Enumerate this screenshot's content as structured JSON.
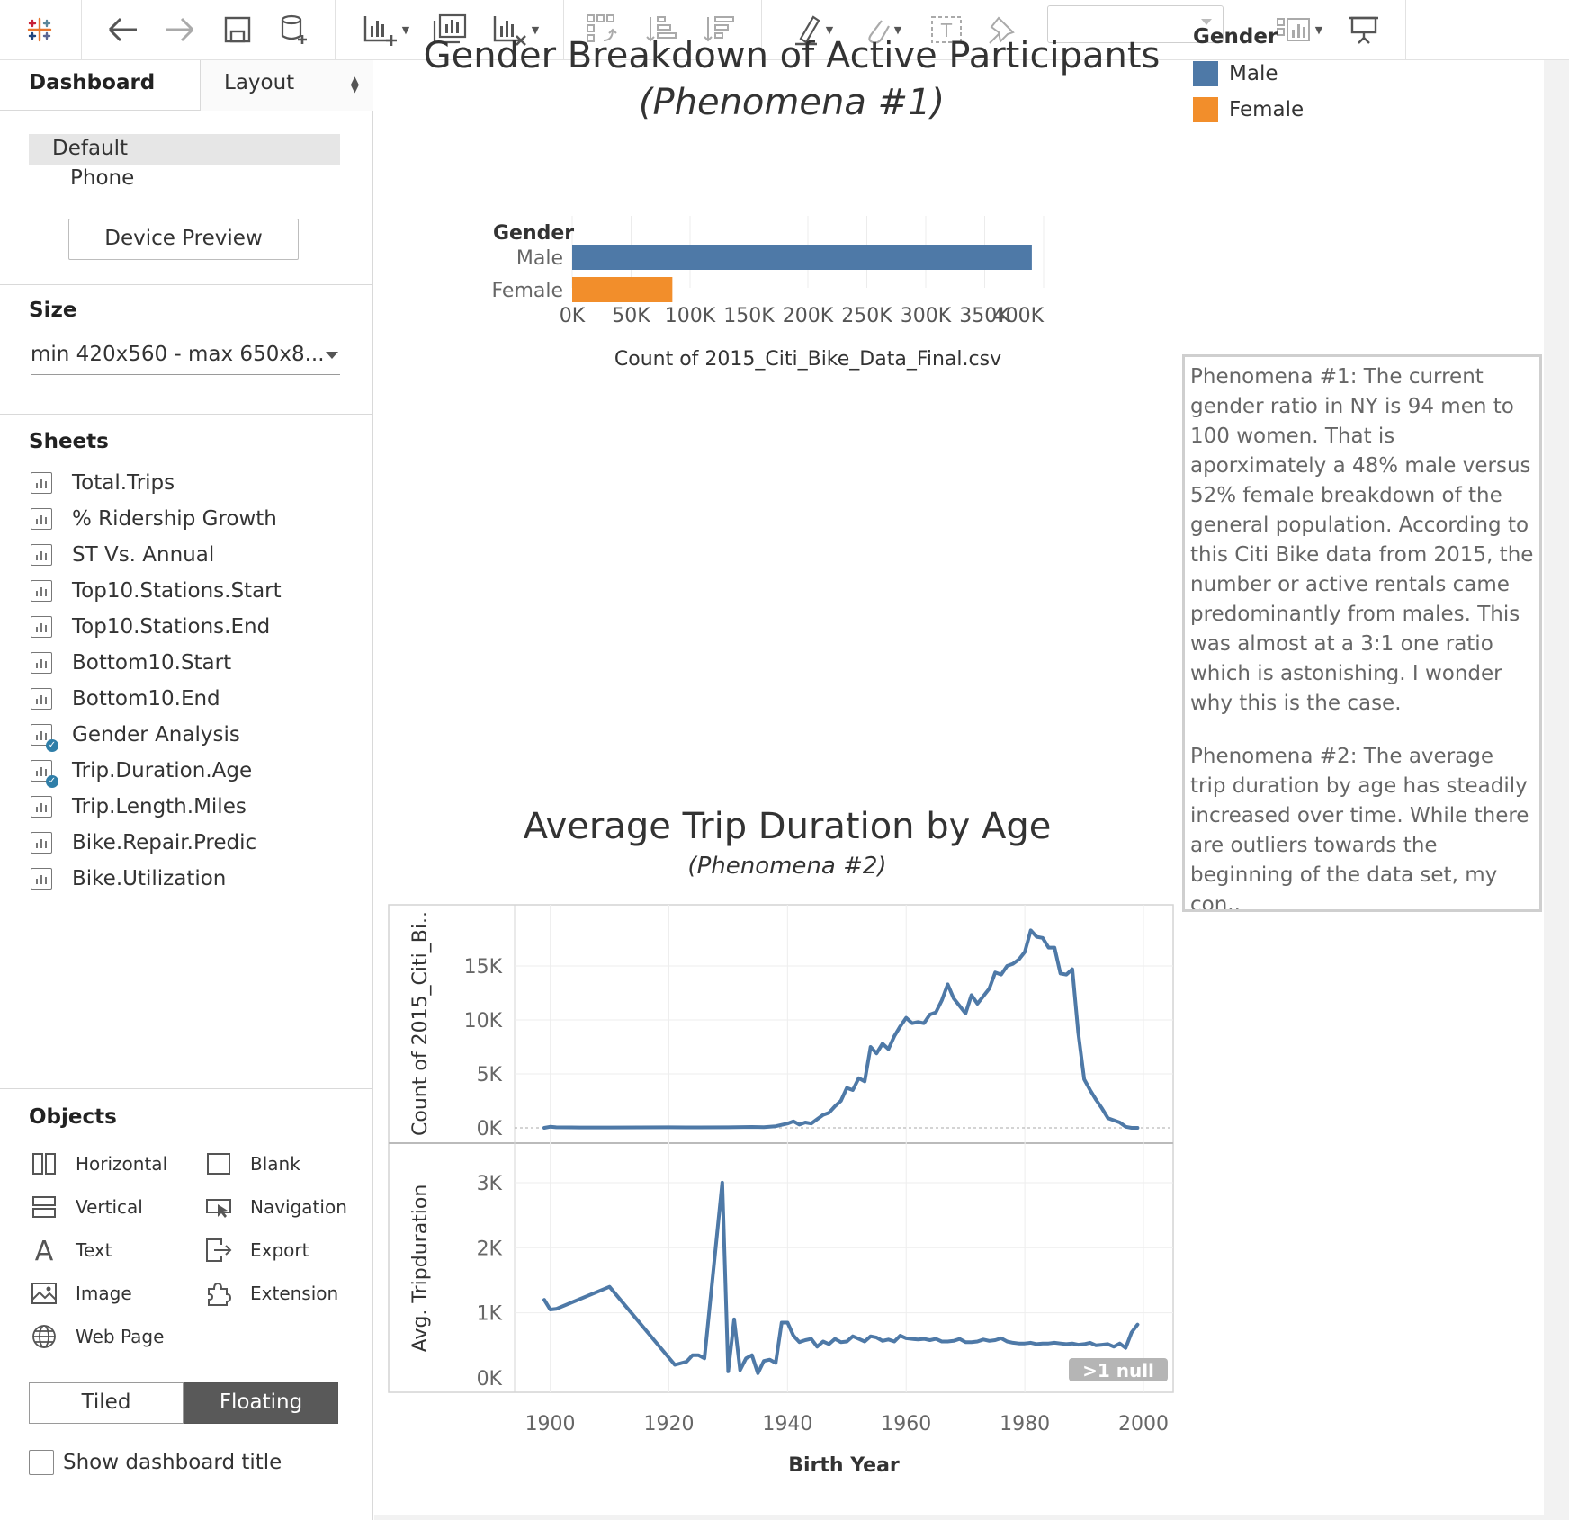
{
  "toolbar": {
    "icons": [
      "tableau-logo-icon",
      "undo-icon",
      "redo-icon",
      "save-icon",
      "new-datasource-icon",
      "new-worksheet-icon",
      "duplicate-sheet-icon",
      "clear-sheet-icon",
      "swap-icon",
      "sort-ascending-icon",
      "sort-descending-icon",
      "highlight-icon",
      "group-icon",
      "label-icon",
      "pin-icon",
      "show-cards-icon",
      "presentation-icon"
    ],
    "select_value": ""
  },
  "left_panel": {
    "tab_dashboard": "Dashboard",
    "tab_layout": "Layout",
    "device_default": "Default",
    "device_phone": "Phone",
    "device_preview_button": "Device Preview",
    "size_title": "Size",
    "size_value": "min 420x560 - max 650x8...",
    "sheets_title": "Sheets",
    "sheets": [
      {
        "label": "Total.Trips",
        "used": false
      },
      {
        "label": "% Ridership Growth",
        "used": false
      },
      {
        "label": "ST Vs. Annual",
        "used": false
      },
      {
        "label": "Top10.Stations.Start",
        "used": false
      },
      {
        "label": "Top10.Stations.End",
        "used": false
      },
      {
        "label": "Bottom10.Start",
        "used": false
      },
      {
        "label": "Bottom10.End",
        "used": false
      },
      {
        "label": "Gender Analysis",
        "used": true
      },
      {
        "label": "Trip.Duration.Age",
        "used": true
      },
      {
        "label": "Trip.Length.Miles",
        "used": false
      },
      {
        "label": "Bike.Repair.Predic",
        "used": false
      },
      {
        "label": "Bike.Utilization",
        "used": false
      }
    ],
    "objects_title": "Objects",
    "objects": [
      {
        "label": "Horizontal",
        "icon": "horizontal-container-icon"
      },
      {
        "label": "Blank",
        "icon": "blank-icon"
      },
      {
        "label": "Vertical",
        "icon": "vertical-container-icon"
      },
      {
        "label": "Navigation",
        "icon": "navigation-icon"
      },
      {
        "label": "Text",
        "icon": "text-icon"
      },
      {
        "label": "Export",
        "icon": "export-icon"
      },
      {
        "label": "Image",
        "icon": "image-icon"
      },
      {
        "label": "Extension",
        "icon": "extension-icon"
      },
      {
        "label": "Web Page",
        "icon": "web-page-icon"
      }
    ],
    "tiled_label": "Tiled",
    "floating_label": "Floating",
    "show_title_label": "Show dashboard title"
  },
  "dashboard": {
    "title1_line1": "Gender Breakdown of Active Participants",
    "title1_line2": "(Phenomena #1)",
    "legend_title": "Gender",
    "legend": [
      {
        "label": "Male",
        "color": "#4e79a7"
      },
      {
        "label": "Female",
        "color": "#f28e2b"
      }
    ],
    "note_p1": "Phenomena #1: The current gender ratio in NY is 94 men to 100 women. That is aporximately a 48% male versus 52% female breakdown of the general population. According to this Citi Bike data from 2015, the number or active rentals came predominantly from males. This was almost at a 3:1 one ratio which is astonishing. I wonder why this is the case.",
    "note_p2": "Phenomena #2: The average trip duration by age has steadily increased over time. While there are outliers towards the beginning of the data set, my con..",
    "title2": "Average Trip Duration by Age",
    "title2_sub": "(Phenomena #2)"
  },
  "chart_data": [
    {
      "type": "bar",
      "orientation": "horizontal",
      "row_header": "Gender",
      "categories": [
        "Male",
        "Female"
      ],
      "values": [
        390000,
        85000
      ],
      "colors": [
        "#4e79a7",
        "#f28e2b"
      ],
      "xlabel": "Count of 2015_Citi_Bike_Data_Final.csv",
      "xlim": [
        0,
        400000
      ],
      "xticks": [
        0,
        50000,
        100000,
        150000,
        200000,
        250000,
        300000,
        350000,
        400000
      ],
      "xtick_labels": [
        "0K",
        "50K",
        "100K",
        "150K",
        "200K",
        "250K",
        "300K",
        "350K",
        "400K"
      ],
      "grid": true
    },
    {
      "type": "line",
      "ylabel": "Count of 2015_Citi_Bi..",
      "xlabel": "Birth Year",
      "xlim": [
        1894,
        2005
      ],
      "ylim": [
        0,
        19500
      ],
      "xticks": [
        1900,
        1920,
        1940,
        1960,
        1980,
        2000
      ],
      "yticks": [
        0,
        5000,
        10000,
        15000
      ],
      "ytick_labels": [
        "0K",
        "5K",
        "10K",
        "15K"
      ],
      "color": "#4e79a7",
      "x": [
        1899,
        1900,
        1901,
        1905,
        1910,
        1915,
        1920,
        1925,
        1930,
        1934,
        1936,
        1938,
        1940,
        1941,
        1942,
        1943,
        1944,
        1945,
        1946,
        1947,
        1948,
        1949,
        1950,
        1951,
        1952,
        1953,
        1954,
        1955,
        1956,
        1957,
        1958,
        1959,
        1960,
        1961,
        1962,
        1963,
        1964,
        1965,
        1966,
        1967,
        1968,
        1969,
        1970,
        1971,
        1972,
        1973,
        1974,
        1975,
        1976,
        1977,
        1978,
        1979,
        1980,
        1981,
        1982,
        1983,
        1984,
        1985,
        1986,
        1987,
        1988,
        1989,
        1990,
        1991,
        1992,
        1993,
        1994,
        1995,
        1996,
        1997,
        1998,
        1999
      ],
      "y": [
        0,
        100,
        50,
        30,
        30,
        40,
        50,
        40,
        50,
        80,
        60,
        150,
        400,
        600,
        300,
        500,
        400,
        800,
        1200,
        1400,
        2000,
        2500,
        3700,
        3500,
        4600,
        4300,
        7500,
        6900,
        7800,
        7300,
        8500,
        9400,
        10200,
        9700,
        9800,
        9700,
        10500,
        10700,
        11800,
        13300,
        12000,
        11300,
        10600,
        12300,
        11500,
        12200,
        12900,
        14400,
        14200,
        15000,
        15200,
        15600,
        16300,
        18300,
        17700,
        17600,
        16700,
        16700,
        14300,
        14200,
        14700,
        8800,
        4500,
        3500,
        2600,
        1800,
        900,
        700,
        500,
        100,
        0,
        0
      ]
    },
    {
      "type": "line",
      "ylabel": "Avg. Tripduration",
      "xlabel": "Birth Year",
      "xlim": [
        1894,
        2005
      ],
      "ylim": [
        0,
        3400
      ],
      "xticks": [
        1900,
        1920,
        1940,
        1960,
        1980,
        2000
      ],
      "xtick_labels": [
        "1900",
        "1920",
        "1940",
        "1960",
        "1980",
        "2000"
      ],
      "yticks": [
        0,
        1000,
        2000,
        3000
      ],
      "ytick_labels": [
        "0K",
        "1K",
        "2K",
        "3K"
      ],
      "color": "#4e79a7",
      "null_indicator": ">1 null",
      "x": [
        1899,
        1900,
        1901,
        1910,
        1921,
        1923,
        1924,
        1925,
        1926,
        1929,
        1930,
        1931,
        1932,
        1933,
        1934,
        1935,
        1936,
        1937,
        1938,
        1939,
        1940,
        1941,
        1942,
        1943,
        1944,
        1945,
        1946,
        1947,
        1948,
        1949,
        1950,
        1951,
        1952,
        1953,
        1954,
        1955,
        1956,
        1957,
        1958,
        1959,
        1960,
        1961,
        1962,
        1963,
        1964,
        1965,
        1966,
        1967,
        1968,
        1969,
        1970,
        1971,
        1972,
        1973,
        1974,
        1975,
        1976,
        1977,
        1978,
        1979,
        1980,
        1981,
        1982,
        1983,
        1984,
        1985,
        1986,
        1987,
        1988,
        1989,
        1990,
        1991,
        1992,
        1993,
        1994,
        1995,
        1996,
        1997,
        1998,
        1999
      ],
      "y": [
        1200,
        1050,
        1060,
        1400,
        200,
        250,
        350,
        350,
        300,
        3000,
        100,
        900,
        120,
        300,
        350,
        70,
        260,
        280,
        230,
        850,
        850,
        650,
        550,
        580,
        600,
        480,
        560,
        520,
        600,
        550,
        560,
        640,
        600,
        560,
        640,
        620,
        570,
        590,
        560,
        650,
        610,
        600,
        590,
        600,
        580,
        600,
        560,
        560,
        570,
        600,
        550,
        550,
        560,
        590,
        570,
        580,
        610,
        560,
        540,
        530,
        530,
        540,
        520,
        530,
        530,
        540,
        530,
        520,
        530,
        510,
        520,
        540,
        500,
        510,
        520,
        480,
        530,
        460,
        700,
        820
      ]
    }
  ]
}
